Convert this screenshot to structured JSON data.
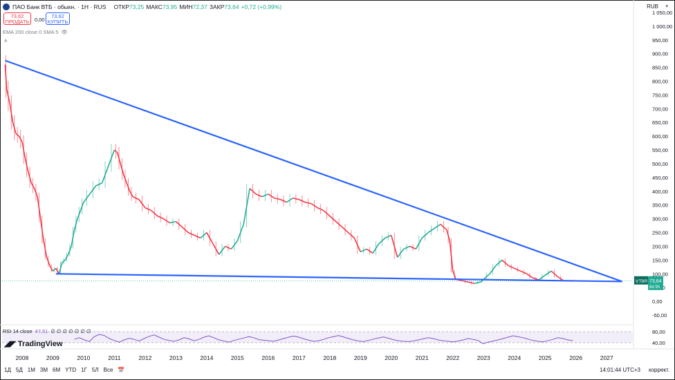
{
  "header": {
    "title": "ПАО Банк ВТБ · обыкн. · 1Н · RUS",
    "open_label": "ОТКР",
    "open": "73,25",
    "high_label": "МАКС",
    "high": "73,95",
    "low_label": "МИН",
    "low": "72,37",
    "close_label": "ЗАКР",
    "close": "73,64",
    "change": "+0,72 (+0,99%)"
  },
  "currency": "RUB",
  "trade": {
    "sell_price": "73,62",
    "sell_label": "ПРОДАТЬ",
    "spread": "0,00",
    "buy_price": "73,62",
    "buy_label": "КУПИТЬ"
  },
  "indicators": {
    "ma_line": "EMA 200 close 0 SMA 5"
  },
  "rsi": {
    "label": "RSI 14 close",
    "value": "47,51",
    "placeholders": "∅ ∅ ∅ ∅ ∅ ∅ ∅",
    "levels": [
      "80,00",
      "40,00"
    ]
  },
  "brand": "TradingView",
  "price_tag": {
    "ticker": "VTBR",
    "price": "73,64",
    "countdown": "6d 5h"
  },
  "timeframes": [
    "1Д",
    "5Д",
    "1М",
    "3М",
    "6М",
    "YTD",
    "1Г",
    "5Л",
    "Все"
  ],
  "clock": "14:01:44 UTC+3",
  "correction": "коррект.",
  "colors": {
    "up": "#22ab94",
    "down": "#f23645",
    "trendline": "#2962ff",
    "rsi": "#7e57c2"
  },
  "chart_data": {
    "type": "line",
    "y_tick_labels": [
      "1 050,00",
      "1 000,00",
      "950,00",
      "900,00",
      "850,00",
      "800,00",
      "750,00",
      "700,00",
      "650,00",
      "600,00",
      "550,00",
      "500,00",
      "450,00",
      "400,00",
      "350,00",
      "300,00",
      "250,00",
      "200,00",
      "150,00",
      "100,00",
      "50,00",
      "0,00",
      "-50,00"
    ],
    "y_ticks": [
      1050,
      1000,
      950,
      900,
      850,
      800,
      750,
      700,
      650,
      600,
      550,
      500,
      450,
      400,
      350,
      300,
      250,
      200,
      150,
      100,
      50,
      0,
      -50
    ],
    "x_tick_labels": [
      "2008",
      "2009",
      "2010",
      "2011",
      "2012",
      "2013",
      "2014",
      "2015",
      "2016",
      "2017",
      "2018",
      "2019",
      "2020",
      "2021",
      "2022",
      "2023",
      "2024",
      "2025",
      "2026",
      "2027"
    ],
    "x_ticks": [
      2008,
      2009,
      2010,
      2011,
      2012,
      2013,
      2014,
      2015,
      2016,
      2017,
      2018,
      2019,
      2020,
      2021,
      2022,
      2023,
      2024,
      2025,
      2026,
      2027
    ],
    "xlim": [
      2007.35,
      2027.85
    ],
    "ylim": [
      -65,
      1080
    ],
    "series": [
      {
        "values": [
          [
            2007.45,
            860
          ],
          [
            2007.5,
            770
          ],
          [
            2007.6,
            720
          ],
          [
            2007.7,
            650
          ],
          [
            2007.8,
            610
          ],
          [
            2007.9,
            600
          ],
          [
            2008.0,
            580
          ],
          [
            2008.1,
            520
          ],
          [
            2008.2,
            470
          ],
          [
            2008.3,
            430
          ],
          [
            2008.4,
            410
          ],
          [
            2008.5,
            380
          ],
          [
            2008.6,
            300
          ],
          [
            2008.7,
            220
          ],
          [
            2008.8,
            160
          ],
          [
            2008.9,
            130
          ],
          [
            2009.0,
            110
          ],
          [
            2009.1,
            120
          ],
          [
            2009.2,
            100
          ],
          [
            2009.3,
            140
          ],
          [
            2009.4,
            150
          ],
          [
            2009.5,
            170
          ],
          [
            2009.6,
            200
          ],
          [
            2009.7,
            260
          ],
          [
            2009.8,
            300
          ],
          [
            2009.9,
            330
          ],
          [
            2010.0,
            360
          ],
          [
            2010.2,
            390
          ],
          [
            2010.4,
            420
          ],
          [
            2010.6,
            430
          ],
          [
            2010.8,
            490
          ],
          [
            2011.0,
            550
          ],
          [
            2011.1,
            540
          ],
          [
            2011.2,
            500
          ],
          [
            2011.3,
            460
          ],
          [
            2011.4,
            430
          ],
          [
            2011.5,
            400
          ],
          [
            2011.6,
            380
          ],
          [
            2011.8,
            370
          ],
          [
            2012.0,
            340
          ],
          [
            2012.2,
            330
          ],
          [
            2012.4,
            310
          ],
          [
            2012.6,
            300
          ],
          [
            2012.8,
            285
          ],
          [
            2013.0,
            290
          ],
          [
            2013.2,
            270
          ],
          [
            2013.4,
            250
          ],
          [
            2013.6,
            240
          ],
          [
            2013.8,
            230
          ],
          [
            2014.0,
            250
          ],
          [
            2014.2,
            210
          ],
          [
            2014.4,
            170
          ],
          [
            2014.6,
            200
          ],
          [
            2014.8,
            190
          ],
          [
            2015.0,
            220
          ],
          [
            2015.2,
            280
          ],
          [
            2015.4,
            410
          ],
          [
            2015.6,
            390
          ],
          [
            2015.8,
            380
          ],
          [
            2016.0,
            390
          ],
          [
            2016.2,
            375
          ],
          [
            2016.4,
            370
          ],
          [
            2016.6,
            360
          ],
          [
            2016.8,
            375
          ],
          [
            2017.0,
            370
          ],
          [
            2017.2,
            360
          ],
          [
            2017.4,
            355
          ],
          [
            2017.6,
            340
          ],
          [
            2017.8,
            330
          ],
          [
            2018.0,
            310
          ],
          [
            2018.2,
            290
          ],
          [
            2018.4,
            270
          ],
          [
            2018.6,
            250
          ],
          [
            2018.8,
            230
          ],
          [
            2019.0,
            180
          ],
          [
            2019.2,
            190
          ],
          [
            2019.4,
            175
          ],
          [
            2019.6,
            210
          ],
          [
            2019.8,
            230
          ],
          [
            2020.0,
            240
          ],
          [
            2020.2,
            160
          ],
          [
            2020.4,
            190
          ],
          [
            2020.6,
            200
          ],
          [
            2020.8,
            190
          ],
          [
            2021.0,
            230
          ],
          [
            2021.2,
            250
          ],
          [
            2021.4,
            265
          ],
          [
            2021.6,
            280
          ],
          [
            2021.8,
            260
          ],
          [
            2021.9,
            220
          ],
          [
            2022.0,
            110
          ],
          [
            2022.1,
            80
          ],
          [
            2022.3,
            75
          ],
          [
            2022.5,
            70
          ],
          [
            2022.7,
            65
          ],
          [
            2022.9,
            70
          ],
          [
            2023.0,
            80
          ],
          [
            2023.2,
            100
          ],
          [
            2023.4,
            130
          ],
          [
            2023.6,
            150
          ],
          [
            2023.8,
            130
          ],
          [
            2024.0,
            120
          ],
          [
            2024.2,
            110
          ],
          [
            2024.4,
            100
          ],
          [
            2024.6,
            85
          ],
          [
            2024.8,
            78
          ],
          [
            2025.0,
            95
          ],
          [
            2025.2,
            110
          ],
          [
            2025.4,
            90
          ],
          [
            2025.6,
            75
          ],
          [
            2025.8,
            74
          ],
          [
            2025.9,
            73.64
          ]
        ]
      }
    ],
    "trendlines": [
      {
        "from": [
          2007.45,
          875
        ],
        "to": [
          2027.5,
          72
        ]
      },
      {
        "from": [
          2009.1,
          100
        ],
        "to": [
          2027.5,
          72
        ]
      }
    ],
    "rsi_series": [
      52,
      58,
      50,
      44,
      62,
      70,
      66,
      55,
      48,
      42,
      50,
      56,
      52,
      46,
      55,
      63,
      68,
      60,
      52,
      48,
      45,
      50,
      58,
      54,
      47,
      52,
      60,
      65,
      58,
      50,
      46,
      42,
      48,
      53,
      57,
      62,
      58,
      51,
      49,
      47,
      45,
      50,
      55,
      60,
      64,
      60,
      54,
      49,
      45,
      47,
      52,
      58,
      62,
      66,
      61,
      55,
      50,
      46,
      44,
      48,
      53,
      57,
      61,
      56,
      51,
      47,
      45,
      44,
      46,
      50,
      54,
      58,
      55,
      50,
      47,
      45,
      43,
      46,
      50,
      55,
      52,
      48,
      36,
      42,
      46,
      50,
      55,
      60,
      65,
      62,
      58,
      53,
      48,
      45,
      43,
      47,
      52,
      58,
      55,
      50,
      47.51
    ]
  }
}
